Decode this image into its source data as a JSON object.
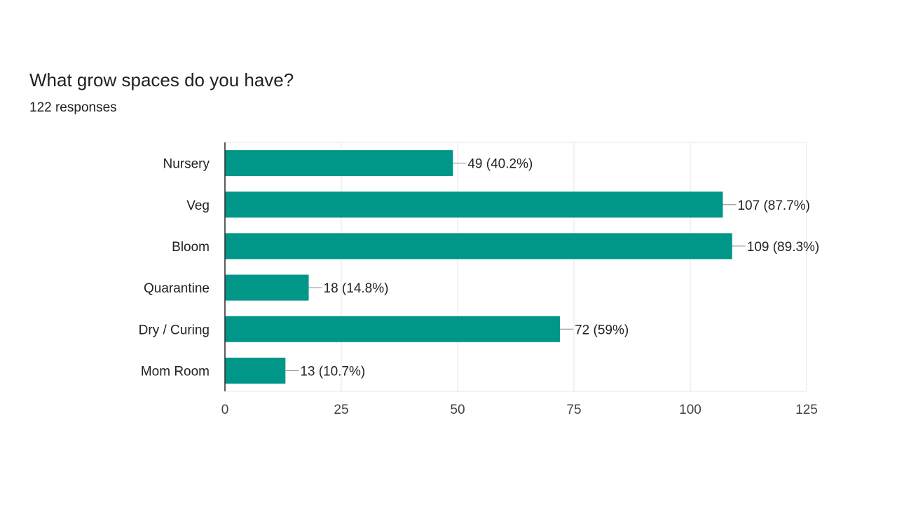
{
  "question": {
    "title": "What grow spaces do you have?",
    "responses": "122 responses"
  },
  "colors": {
    "bar": "#009688",
    "grid": "#e6e6e6",
    "axis": "#333333",
    "leader": "#888888"
  },
  "chart_data": {
    "type": "bar",
    "orientation": "horizontal",
    "categories": [
      "Nursery",
      "Veg",
      "Bloom",
      "Quarantine",
      "Dry / Curing",
      "Mom Room"
    ],
    "values": [
      49,
      107,
      109,
      18,
      72,
      13
    ],
    "data_labels": [
      "49 (40.2%)",
      "107 (87.7%)",
      "109 (89.3%)",
      "18 (14.8%)",
      "72 (59%)",
      "13 (10.7%)"
    ],
    "xticks": [
      0,
      25,
      50,
      75,
      100,
      125
    ],
    "xlim": [
      0,
      125
    ],
    "grid": true,
    "legend": "none"
  }
}
